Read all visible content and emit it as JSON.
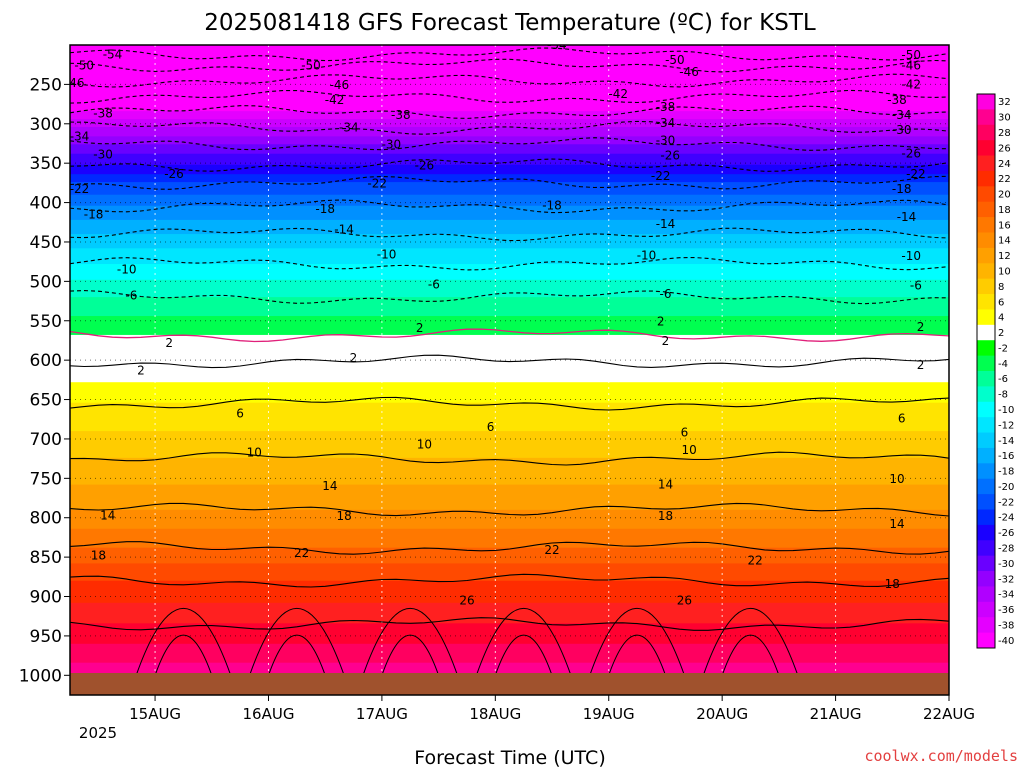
{
  "chart_data": {
    "type": "heatmap",
    "title": "2025081418 GFS Forecast Temperature (ºC) for KSTL",
    "xlabel": "Forecast Time (UTC)",
    "ylabel": "",
    "credit": "coolwx.com/models",
    "x_ticks": [
      "15AUG",
      "16AUG",
      "17AUG",
      "18AUG",
      "19AUG",
      "20AUG",
      "21AUG",
      "22AUG"
    ],
    "x_tick_sublabel": "2025",
    "y_ticks": [
      250,
      300,
      350,
      400,
      450,
      500,
      550,
      600,
      650,
      700,
      750,
      800,
      850,
      900,
      950,
      1000
    ],
    "x_range_hours": [
      -18,
      168
    ],
    "y_range_hPa": [
      200,
      1025
    ],
    "surface_pressure_hPa": 1000,
    "colorbar_ticks": [
      32,
      30,
      28,
      26,
      24,
      22,
      20,
      18,
      16,
      14,
      12,
      10,
      8,
      6,
      4,
      2,
      -2,
      -4,
      -6,
      -8,
      -10,
      -12,
      -14,
      -16,
      -18,
      -20,
      -22,
      -24,
      -26,
      -28,
      -30,
      -32,
      -34,
      -36,
      -38,
      -40
    ],
    "colorbar_colors": [
      "#ff00e0",
      "#ff0090",
      "#ff0060",
      "#ff0030",
      "#ff2020",
      "#ff2c00",
      "#ff4a00",
      "#ff6000",
      "#ff7800",
      "#ff8c00",
      "#ffa000",
      "#ffb400",
      "#ffcc00",
      "#ffe400",
      "#ffff00",
      "#ffffff",
      "#00ff00",
      "#00ff50",
      "#00ff98",
      "#00ffcc",
      "#00ffff",
      "#00e6ff",
      "#00ccff",
      "#00b0ff",
      "#0090ff",
      "#0070ff",
      "#0050ff",
      "#0028ff",
      "#1a00ff",
      "#4000ff",
      "#6a00ff",
      "#9400ff",
      "#b000ff",
      "#cc00ff",
      "#e400ff",
      "#ff00ff"
    ],
    "contour_levels": [
      -54,
      -50,
      -46,
      -42,
      -38,
      -34,
      -30,
      -26,
      -22,
      -18,
      -14,
      -10,
      -6,
      -2,
      2,
      6,
      10,
      14,
      18,
      22,
      26
    ],
    "isotherm_pressure_hPa": [
      {
        "t": 26,
        "p": 935
      },
      {
        "t": 22,
        "p": 880
      },
      {
        "t": 18,
        "p": 838
      },
      {
        "t": 14,
        "p": 790
      },
      {
        "t": 10,
        "p": 725
      },
      {
        "t": 6,
        "p": 655
      },
      {
        "t": 2,
        "p": 602
      },
      {
        "t": -2,
        "p": 568
      },
      {
        "t": -6,
        "p": 520
      },
      {
        "t": -10,
        "p": 478
      },
      {
        "t": -14,
        "p": 440
      },
      {
        "t": -18,
        "p": 405
      },
      {
        "t": -22,
        "p": 375
      },
      {
        "t": -26,
        "p": 352
      },
      {
        "t": -30,
        "p": 326
      },
      {
        "t": -34,
        "p": 305
      },
      {
        "t": -38,
        "p": 285
      },
      {
        "t": -42,
        "p": 266
      },
      {
        "t": -46,
        "p": 245
      },
      {
        "t": -50,
        "p": 226
      },
      {
        "t": -54,
        "p": 212
      }
    ],
    "contour_labels": [
      {
        "text": "-54",
        "x": -9,
        "p": 212
      },
      {
        "text": "-54",
        "x": 85,
        "p": 200
      },
      {
        "text": "-50",
        "x": -15,
        "p": 226
      },
      {
        "text": "-50",
        "x": 33,
        "p": 226
      },
      {
        "text": "-50",
        "x": 110,
        "p": 219
      },
      {
        "text": "-50",
        "x": 160,
        "p": 213
      },
      {
        "text": "-46",
        "x": -17,
        "p": 248
      },
      {
        "text": "-46",
        "x": 39,
        "p": 251
      },
      {
        "text": "-46",
        "x": 113,
        "p": 234
      },
      {
        "text": "-46",
        "x": 160,
        "p": 226
      },
      {
        "text": "-42",
        "x": 38,
        "p": 270
      },
      {
        "text": "-42",
        "x": 98,
        "p": 262
      },
      {
        "text": "-42",
        "x": 160,
        "p": 250
      },
      {
        "text": "-38",
        "x": -11,
        "p": 287
      },
      {
        "text": "-38",
        "x": 52,
        "p": 289
      },
      {
        "text": "-38",
        "x": 108,
        "p": 279
      },
      {
        "text": "-38",
        "x": 157,
        "p": 270
      },
      {
        "text": "-34",
        "x": -16,
        "p": 316
      },
      {
        "text": "-34",
        "x": 41,
        "p": 305
      },
      {
        "text": "-34",
        "x": 108,
        "p": 299
      },
      {
        "text": "-34",
        "x": 158,
        "p": 289
      },
      {
        "text": "-30",
        "x": -11,
        "p": 339
      },
      {
        "text": "-30",
        "x": 50,
        "p": 326
      },
      {
        "text": "-30",
        "x": 108,
        "p": 321
      },
      {
        "text": "-30",
        "x": 158,
        "p": 308
      },
      {
        "text": "-26",
        "x": 4,
        "p": 364
      },
      {
        "text": "-26",
        "x": 57,
        "p": 353
      },
      {
        "text": "-26",
        "x": 109,
        "p": 340
      },
      {
        "text": "-26",
        "x": 160,
        "p": 338
      },
      {
        "text": "-22",
        "x": -16,
        "p": 383
      },
      {
        "text": "-22",
        "x": 47,
        "p": 376
      },
      {
        "text": "-22",
        "x": 107,
        "p": 366
      },
      {
        "text": "-22",
        "x": 161,
        "p": 364
      },
      {
        "text": "-18",
        "x": -13,
        "p": 415
      },
      {
        "text": "-18",
        "x": 36,
        "p": 408
      },
      {
        "text": "-18",
        "x": 84,
        "p": 404
      },
      {
        "text": "-18",
        "x": 158,
        "p": 383
      },
      {
        "text": "-14",
        "x": 40,
        "p": 434
      },
      {
        "text": "-14",
        "x": 108,
        "p": 427
      },
      {
        "text": "-14",
        "x": 159,
        "p": 418
      },
      {
        "text": "-10",
        "x": -6,
        "p": 485
      },
      {
        "text": "-10",
        "x": 49,
        "p": 466
      },
      {
        "text": "-10",
        "x": 104,
        "p": 467
      },
      {
        "text": "-10",
        "x": 160,
        "p": 468
      },
      {
        "text": "-6",
        "x": -5,
        "p": 518
      },
      {
        "text": "-6",
        "x": 59,
        "p": 504
      },
      {
        "text": "-6",
        "x": 108,
        "p": 516
      },
      {
        "text": "-6",
        "x": 161,
        "p": 505
      },
      {
        "text": "2",
        "x": 3,
        "p": 578
      },
      {
        "text": "2",
        "x": 56,
        "p": 559
      },
      {
        "text": "2",
        "x": 107,
        "p": 551
      },
      {
        "text": "2",
        "x": 108,
        "p": 576
      },
      {
        "text": "2",
        "x": 162,
        "p": 558
      },
      {
        "text": "2",
        "x": -3,
        "p": 613
      },
      {
        "text": "2",
        "x": 42,
        "p": 597
      },
      {
        "text": "2",
        "x": 162,
        "p": 606
      },
      {
        "text": "6",
        "x": 18,
        "p": 668
      },
      {
        "text": "6",
        "x": 71,
        "p": 685
      },
      {
        "text": "6",
        "x": 112,
        "p": 692
      },
      {
        "text": "6",
        "x": 158,
        "p": 674
      },
      {
        "text": "10",
        "x": 21,
        "p": 717
      },
      {
        "text": "10",
        "x": 57,
        "p": 707
      },
      {
        "text": "10",
        "x": 113,
        "p": 714
      },
      {
        "text": "10",
        "x": 157,
        "p": 751
      },
      {
        "text": "14",
        "x": -10,
        "p": 797
      },
      {
        "text": "14",
        "x": 37,
        "p": 760
      },
      {
        "text": "14",
        "x": 108,
        "p": 758
      },
      {
        "text": "14",
        "x": 157,
        "p": 808
      },
      {
        "text": "18",
        "x": -12,
        "p": 848
      },
      {
        "text": "18",
        "x": 40,
        "p": 798
      },
      {
        "text": "18",
        "x": 108,
        "p": 798
      },
      {
        "text": "18",
        "x": 156,
        "p": 884
      },
      {
        "text": "22",
        "x": 31,
        "p": 845
      },
      {
        "text": "22",
        "x": 84,
        "p": 841
      },
      {
        "text": "22",
        "x": 127,
        "p": 854
      },
      {
        "text": "26",
        "x": 66,
        "p": 905
      },
      {
        "text": "26",
        "x": 112,
        "p": 905
      }
    ]
  }
}
